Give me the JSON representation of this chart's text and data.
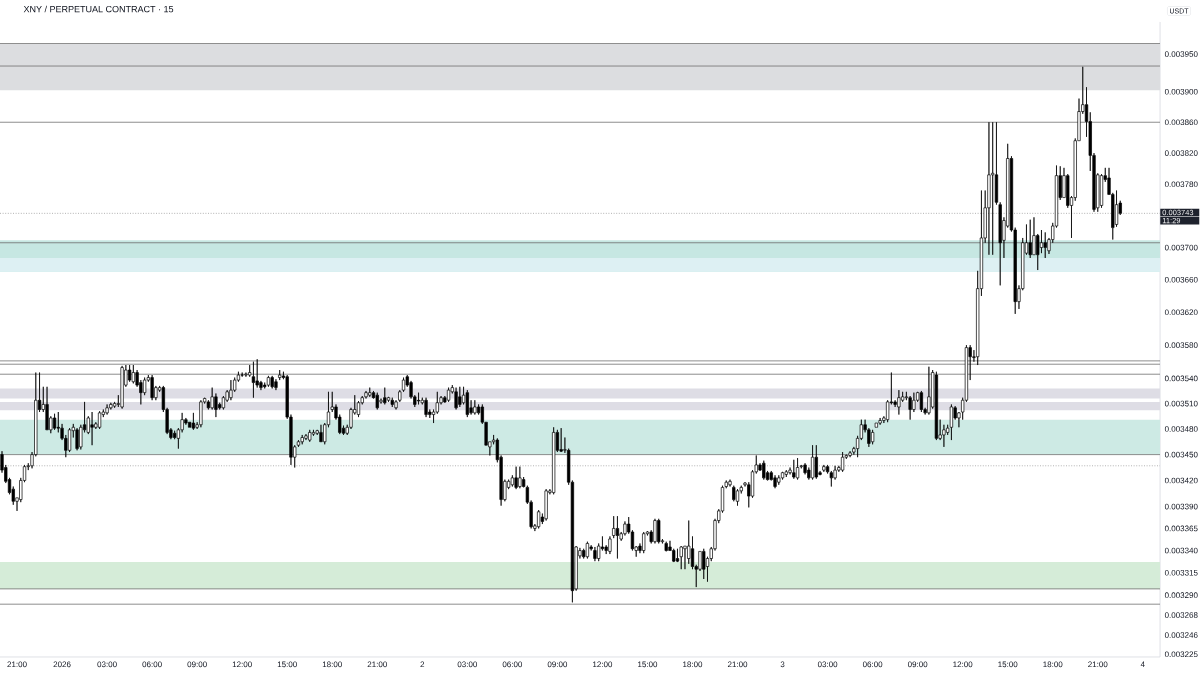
{
  "chart_data": {
    "type": "candlestick",
    "title": "XNY / PERPETUAL CONTRACT · 15",
    "ylabel": "USDT",
    "color": "#000000",
    "log": "y",
    "xlim": [
      "2025-12-31T19:52",
      "2026-01-04T01:09"
    ],
    "ylim": [
      0.003222,
      0.003993
    ],
    "xticks": [
      {
        "value": "2025-12-31T21:00",
        "label": "21:00"
      },
      {
        "value": "2026-01-01T00:00",
        "label": "2026"
      },
      {
        "value": "2026-01-01T03:00",
        "label": "03:00"
      },
      {
        "value": "2026-01-01T06:00",
        "label": "06:00"
      },
      {
        "value": "2026-01-01T09:00",
        "label": "09:00"
      },
      {
        "value": "2026-01-01T12:00",
        "label": "12:00"
      },
      {
        "value": "2026-01-01T15:00",
        "label": "15:00"
      },
      {
        "value": "2026-01-01T18:00",
        "label": "18:00"
      },
      {
        "value": "2026-01-01T21:00",
        "label": "21:00"
      },
      {
        "value": "2026-01-02T00:00",
        "label": "2"
      },
      {
        "value": "2026-01-02T03:00",
        "label": "03:00"
      },
      {
        "value": "2026-01-02T06:00",
        "label": "06:00"
      },
      {
        "value": "2026-01-02T09:00",
        "label": "09:00"
      },
      {
        "value": "2026-01-02T12:00",
        "label": "12:00"
      },
      {
        "value": "2026-01-02T15:00",
        "label": "15:00"
      },
      {
        "value": "2026-01-02T18:00",
        "label": "18:00"
      },
      {
        "value": "2026-01-02T21:00",
        "label": "21:00"
      },
      {
        "value": "2026-01-03T00:00",
        "label": "3"
      },
      {
        "value": "2026-01-03T03:00",
        "label": "03:00"
      },
      {
        "value": "2026-01-03T06:00",
        "label": "06:00"
      },
      {
        "value": "2026-01-03T09:00",
        "label": "09:00"
      },
      {
        "value": "2026-01-03T12:00",
        "label": "12:00"
      },
      {
        "value": "2026-01-03T15:00",
        "label": "15:00"
      },
      {
        "value": "2026-01-03T18:00",
        "label": "18:00"
      },
      {
        "value": "2026-01-03T21:00",
        "label": "21:00"
      },
      {
        "value": "2026-01-04T00:00",
        "label": "4"
      }
    ],
    "yticks": [
      {
        "value": 0.00395,
        "label": "0.003950"
      },
      {
        "value": 0.0039,
        "label": "0.003900"
      },
      {
        "value": 0.00386,
        "label": "0.003860"
      },
      {
        "value": 0.00382,
        "label": "0.003820"
      },
      {
        "value": 0.00378,
        "label": "0.003780"
      },
      {
        "value": 0.0037,
        "label": "0.003700"
      },
      {
        "value": 0.00366,
        "label": "0.003660"
      },
      {
        "value": 0.00362,
        "label": "0.003620"
      },
      {
        "value": 0.00358,
        "label": "0.003580"
      },
      {
        "value": 0.00354,
        "label": "0.003540"
      },
      {
        "value": 0.00351,
        "label": "0.003510"
      },
      {
        "value": 0.00348,
        "label": "0.003480"
      },
      {
        "value": 0.00345,
        "label": "0.003450"
      },
      {
        "value": 0.00342,
        "label": "0.003420"
      },
      {
        "value": 0.00339,
        "label": "0.003390"
      },
      0.003365,
      {
        "value": 0.00334,
        "label": "0.003340"
      },
      0.003315,
      {
        "value": 0.00329,
        "label": "0.003290"
      },
      0.003268,
      0.003246,
      0.003225
    ],
    "bands": [
      {
        "axis": "y",
        "from": 0.003934,
        "to": 0.003964,
        "color": "#dcdde0"
      },
      {
        "axis": "y",
        "from": 0.003902,
        "to": 0.003934,
        "color": "#dcdde0"
      },
      {
        "axis": "y",
        "from": 0.00367,
        "to": 0.003687,
        "color": "#ddf0f3"
      },
      {
        "axis": "y",
        "from": 0.00367,
        "to": 0.003709,
        "color": "#c6e7e2"
      },
      {
        "axis": "y",
        "from": 0.003516,
        "to": 0.003528,
        "color": "#dedde5"
      },
      {
        "axis": "y",
        "from": 0.003502,
        "to": 0.003512,
        "color": "#dedde5"
      },
      {
        "axis": "y",
        "from": 0.00345,
        "to": 0.003491,
        "color": "#cdeae4"
      },
      {
        "axis": "y",
        "from": 0.003297,
        "to": 0.003327,
        "color": "#d5ecd8"
      }
    ],
    "ref_lines": [
      {
        "axis": "y",
        "value": 0.003964,
        "color": "#707070"
      },
      {
        "axis": "y",
        "value": 0.003934,
        "color": "#707070"
      },
      {
        "axis": "y",
        "value": 0.00386,
        "color": "#707070"
      },
      {
        "axis": "y",
        "value": 0.003743,
        "label": "0.003743",
        "color": "#a0a0a0",
        "line_style": "dotted"
      },
      {
        "axis": "y",
        "value": 0.003706,
        "color": "#707070"
      },
      {
        "axis": "y",
        "value": 0.003561,
        "color": "#707070"
      },
      {
        "axis": "y",
        "value": 0.003557,
        "color": "#707070"
      },
      {
        "axis": "y",
        "value": 0.003545,
        "color": "#707070"
      },
      {
        "axis": "y",
        "value": 0.00345,
        "color": "#707070"
      },
      {
        "axis": "y",
        "value": 0.003437,
        "color": "#a0a0a0",
        "line_style": "dotted"
      },
      {
        "axis": "y",
        "value": 0.003297,
        "color": "#707070"
      },
      {
        "axis": "y",
        "value": 0.00328,
        "color": "#707070"
      }
    ],
    "annotations": [
      "11:29"
    ],
    "x": [
      "2025-12-31T20:00",
      "2025-12-31T20:15",
      "2025-12-31T20:30",
      "2025-12-31T20:45",
      "2025-12-31T21:00",
      "2025-12-31T21:15",
      "2025-12-31T21:30",
      "2025-12-31T21:45",
      "2025-12-31T22:00",
      "2025-12-31T22:15",
      "2025-12-31T22:30",
      "2025-12-31T22:45",
      "2025-12-31T23:00",
      "2025-12-31T23:15",
      "2025-12-31T23:30",
      "2025-12-31T23:45",
      "2026-01-01T00:00",
      "2026-01-01T00:15",
      "2026-01-01T00:30",
      "2026-01-01T00:45",
      "2026-01-01T01:00",
      "2026-01-01T01:15",
      "2026-01-01T01:30",
      "2026-01-01T01:45",
      "2026-01-01T02:00",
      "2026-01-01T02:15",
      "2026-01-01T02:30",
      "2026-01-01T02:45",
      "2026-01-01T03:00",
      "2026-01-01T03:15",
      "2026-01-01T03:30",
      "2026-01-01T03:45",
      "2026-01-01T04:00",
      "2026-01-01T04:15",
      "2026-01-01T04:30",
      "2026-01-01T04:45",
      "2026-01-01T05:00",
      "2026-01-01T05:15",
      "2026-01-01T05:30",
      "2026-01-01T05:45",
      "2026-01-01T06:00",
      "2026-01-01T06:15",
      "2026-01-01T06:30",
      "2026-01-01T06:45",
      "2026-01-01T07:00",
      "2026-01-01T07:15",
      "2026-01-01T07:30",
      "2026-01-01T07:45",
      "2026-01-01T08:00",
      "2026-01-01T08:15",
      "2026-01-01T08:30",
      "2026-01-01T08:45",
      "2026-01-01T09:00",
      "2026-01-01T09:15",
      "2026-01-01T09:30",
      "2026-01-01T09:45",
      "2026-01-01T10:00",
      "2026-01-01T10:15",
      "2026-01-01T10:30",
      "2026-01-01T10:45",
      "2026-01-01T11:00",
      "2026-01-01T11:15",
      "2026-01-01T11:30",
      "2026-01-01T11:45",
      "2026-01-01T12:00",
      "2026-01-01T12:15",
      "2026-01-01T12:30",
      "2026-01-01T12:45",
      "2026-01-01T13:00",
      "2026-01-01T13:15",
      "2026-01-01T13:30",
      "2026-01-01T13:45",
      "2026-01-01T14:00",
      "2026-01-01T14:15",
      "2026-01-01T14:30",
      "2026-01-01T14:45",
      "2026-01-01T15:00",
      "2026-01-01T15:15",
      "2026-01-01T15:30",
      "2026-01-01T15:45",
      "2026-01-01T16:00",
      "2026-01-01T16:15",
      "2026-01-01T16:30",
      "2026-01-01T16:45",
      "2026-01-01T17:00",
      "2026-01-01T17:15",
      "2026-01-01T17:30",
      "2026-01-01T17:45",
      "2026-01-01T18:00",
      "2026-01-01T18:15",
      "2026-01-01T18:30",
      "2026-01-01T18:45",
      "2026-01-01T19:00",
      "2026-01-01T19:15",
      "2026-01-01T19:30",
      "2026-01-01T19:45",
      "2026-01-01T20:00",
      "2026-01-01T20:15",
      "2026-01-01T20:30",
      "2026-01-01T20:45",
      "2026-01-01T21:00",
      "2026-01-01T21:15",
      "2026-01-01T21:30",
      "2026-01-01T21:45",
      "2026-01-01T22:00",
      "2026-01-01T22:15",
      "2026-01-01T22:30",
      "2026-01-01T22:45",
      "2026-01-01T23:00",
      "2026-01-01T23:15",
      "2026-01-01T23:30",
      "2026-01-01T23:45",
      "2026-01-02T00:00",
      "2026-01-02T00:15",
      "2026-01-02T00:30",
      "2026-01-02T00:45",
      "2026-01-02T01:00",
      "2026-01-02T01:15",
      "2026-01-02T01:30",
      "2026-01-02T01:45",
      "2026-01-02T02:00",
      "2026-01-02T02:15",
      "2026-01-02T02:30",
      "2026-01-02T02:45",
      "2026-01-02T03:00",
      "2026-01-02T03:15",
      "2026-01-02T03:30",
      "2026-01-02T03:45",
      "2026-01-02T04:00",
      "2026-01-02T04:15",
      "2026-01-02T04:30",
      "2026-01-02T04:45",
      "2026-01-02T05:00",
      "2026-01-02T05:15",
      "2026-01-02T05:30",
      "2026-01-02T05:45",
      "2026-01-02T06:00",
      "2026-01-02T06:15",
      "2026-01-02T06:30",
      "2026-01-02T06:45",
      "2026-01-02T07:00",
      "2026-01-02T07:15",
      "2026-01-02T07:30",
      "2026-01-02T07:45",
      "2026-01-02T08:00",
      "2026-01-02T08:15",
      "2026-01-02T08:30",
      "2026-01-02T08:45",
      "2026-01-02T09:00",
      "2026-01-02T09:15",
      "2026-01-02T09:30",
      "2026-01-02T09:45",
      "2026-01-02T10:00",
      "2026-01-02T10:15",
      "2026-01-02T10:30",
      "2026-01-02T10:45",
      "2026-01-02T11:00",
      "2026-01-02T11:15",
      "2026-01-02T11:30",
      "2026-01-02T11:45",
      "2026-01-02T12:00",
      "2026-01-02T12:15",
      "2026-01-02T12:30",
      "2026-01-02T12:45",
      "2026-01-02T13:00",
      "2026-01-02T13:15",
      "2026-01-02T13:30",
      "2026-01-02T13:45",
      "2026-01-02T14:00",
      "2026-01-02T14:15",
      "2026-01-02T14:30",
      "2026-01-02T14:45",
      "2026-01-02T15:00",
      "2026-01-02T15:15",
      "2026-01-02T15:30",
      "2026-01-02T15:45",
      "2026-01-02T16:00",
      "2026-01-02T16:15",
      "2026-01-02T16:30",
      "2026-01-02T16:45",
      "2026-01-02T17:00",
      "2026-01-02T17:15",
      "2026-01-02T17:30",
      "2026-01-02T17:45",
      "2026-01-02T18:00",
      "2026-01-02T18:15",
      "2026-01-02T18:30",
      "2026-01-02T18:45",
      "2026-01-02T19:00",
      "2026-01-02T19:15",
      "2026-01-02T19:30",
      "2026-01-02T19:45",
      "2026-01-02T20:00",
      "2026-01-02T20:15",
      "2026-01-02T20:30",
      "2026-01-02T20:45",
      "2026-01-02T21:00",
      "2026-01-02T21:15",
      "2026-01-02T21:30",
      "2026-01-02T21:45",
      "2026-01-02T22:00",
      "2026-01-02T22:15",
      "2026-01-02T22:30",
      "2026-01-02T22:45",
      "2026-01-02T23:00",
      "2026-01-02T23:15",
      "2026-01-02T23:30",
      "2026-01-02T23:45",
      "2026-01-03T00:00",
      "2026-01-03T00:15",
      "2026-01-03T00:30",
      "2026-01-03T00:45",
      "2026-01-03T01:00",
      "2026-01-03T01:15",
      "2026-01-03T01:30",
      "2026-01-03T01:45",
      "2026-01-03T02:00",
      "2026-01-03T02:15",
      "2026-01-03T02:30",
      "2026-01-03T02:45",
      "2026-01-03T03:00",
      "2026-01-03T03:15",
      "2026-01-03T03:30",
      "2026-01-03T03:45",
      "2026-01-03T04:00",
      "2026-01-03T04:15",
      "2026-01-03T04:30",
      "2026-01-03T04:45",
      "2026-01-03T05:00",
      "2026-01-03T05:15",
      "2026-01-03T05:30",
      "2026-01-03T05:45",
      "2026-01-03T06:00",
      "2026-01-03T06:15",
      "2026-01-03T06:30",
      "2026-01-03T06:45",
      "2026-01-03T07:00",
      "2026-01-03T07:15",
      "2026-01-03T07:30",
      "2026-01-03T07:45",
      "2026-01-03T08:00",
      "2026-01-03T08:15",
      "2026-01-03T08:30",
      "2026-01-03T08:45",
      "2026-01-03T09:00",
      "2026-01-03T09:15",
      "2026-01-03T09:30",
      "2026-01-03T09:45",
      "2026-01-03T10:00",
      "2026-01-03T10:15",
      "2026-01-03T10:30",
      "2026-01-03T10:45",
      "2026-01-03T11:00",
      "2026-01-03T11:15",
      "2026-01-03T11:30",
      "2026-01-03T11:45",
      "2026-01-03T12:00",
      "2026-01-03T12:15",
      "2026-01-03T12:30",
      "2026-01-03T12:45",
      "2026-01-03T13:00",
      "2026-01-03T13:15",
      "2026-01-03T13:30",
      "2026-01-03T13:45",
      "2026-01-03T14:00",
      "2026-01-03T14:15",
      "2026-01-03T14:30",
      "2026-01-03T14:45",
      "2026-01-03T15:00",
      "2026-01-03T15:15",
      "2026-01-03T15:30",
      "2026-01-03T15:45",
      "2026-01-03T16:00",
      "2026-01-03T16:15",
      "2026-01-03T16:30",
      "2026-01-03T16:45",
      "2026-01-03T17:00",
      "2026-01-03T17:15",
      "2026-01-03T17:30",
      "2026-01-03T17:45",
      "2026-01-03T18:00",
      "2026-01-03T18:15",
      "2026-01-03T18:30",
      "2026-01-03T18:45",
      "2026-01-03T19:00",
      "2026-01-03T19:15",
      "2026-01-03T19:30",
      "2026-01-03T19:45",
      "2026-01-03T20:00",
      "2026-01-03T20:15",
      "2026-01-03T20:30",
      "2026-01-03T20:45",
      "2026-01-03T21:00",
      "2026-01-03T21:15",
      "2026-01-03T21:30",
      "2026-01-03T21:45",
      "2026-01-03T22:00",
      "2026-01-03T22:15",
      "2026-01-03T22:30"
    ],
    "ohlc": [
      [
        0.00345,
        0.003454,
        0.003429,
        0.003432
      ],
      [
        0.003435,
        0.003438,
        0.003417,
        0.003419
      ],
      [
        0.003421,
        0.003423,
        0.003404,
        0.003406
      ],
      [
        0.00341,
        0.003413,
        0.003392,
        0.003396
      ],
      [
        0.003396,
        0.0034,
        0.003385,
        0.0034
      ],
      [
        0.003398,
        0.003423,
        0.003395,
        0.00342
      ],
      [
        0.00342,
        0.003438,
        0.003418,
        0.003436
      ],
      [
        0.003436,
        0.00344,
        0.003432,
        0.003437
      ],
      [
        0.003437,
        0.003453,
        0.003434,
        0.00345
      ],
      [
        0.00345,
        0.003547,
        0.003448,
        0.003514
      ],
      [
        0.003514,
        0.003547,
        0.0035,
        0.003503
      ],
      [
        0.003503,
        0.00353,
        0.0035,
        0.003509
      ],
      [
        0.003509,
        0.00353,
        0.003479,
        0.003479
      ],
      [
        0.003479,
        0.003495,
        0.003475,
        0.003493
      ],
      [
        0.003493,
        0.003498,
        0.003479,
        0.003481
      ],
      [
        0.003482,
        0.0035,
        0.003476,
        0.003481
      ],
      [
        0.003481,
        0.003486,
        0.003467,
        0.003469
      ],
      [
        0.003469,
        0.003473,
        0.003447,
        0.003455
      ],
      [
        0.003455,
        0.003481,
        0.003453,
        0.003479
      ],
      [
        0.003478,
        0.003486,
        0.00347,
        0.003482
      ],
      [
        0.003479,
        0.003481,
        0.003455,
        0.003457
      ],
      [
        0.003459,
        0.003485,
        0.003456,
        0.003482
      ],
      [
        0.003485,
        0.003512,
        0.003476,
        0.003479
      ],
      [
        0.003476,
        0.003495,
        0.003474,
        0.003493
      ],
      [
        0.003485,
        0.0035,
        0.003461,
        0.003482
      ],
      [
        0.003482,
        0.003488,
        0.00348,
        0.003486
      ],
      [
        0.003482,
        0.003501,
        0.00348,
        0.003499
      ],
      [
        0.003497,
        0.003503,
        0.003494,
        0.0035
      ],
      [
        0.003499,
        0.003509,
        0.003497,
        0.003505
      ],
      [
        0.003505,
        0.003511,
        0.003503,
        0.003509
      ],
      [
        0.003507,
        0.003512,
        0.003505,
        0.00351
      ],
      [
        0.003509,
        0.00352,
        0.003506,
        0.00351
      ],
      [
        0.003506,
        0.003555,
        0.003504,
        0.003553
      ],
      [
        0.003532,
        0.003556,
        0.00353,
        0.00355
      ],
      [
        0.00355,
        0.003556,
        0.003536,
        0.003538
      ],
      [
        0.003536,
        0.003556,
        0.003534,
        0.003547
      ],
      [
        0.003547,
        0.00355,
        0.00353,
        0.003532
      ],
      [
        0.003535,
        0.003538,
        0.003509,
        0.003523
      ],
      [
        0.003523,
        0.003541,
        0.00352,
        0.003538
      ],
      [
        0.003538,
        0.003544,
        0.003536,
        0.003541
      ],
      [
        0.003541,
        0.003544,
        0.003514,
        0.003517
      ],
      [
        0.003517,
        0.003531,
        0.003514,
        0.003529
      ],
      [
        0.003526,
        0.003531,
        0.003524,
        0.003529
      ],
      [
        0.003529,
        0.003531,
        0.0035,
        0.003503
      ],
      [
        0.003503,
        0.003505,
        0.003474,
        0.003476
      ],
      [
        0.003479,
        0.003481,
        0.003468,
        0.00347
      ],
      [
        0.003475,
        0.003478,
        0.003468,
        0.00347
      ],
      [
        0.003469,
        0.003481,
        0.003457,
        0.003479
      ],
      [
        0.003479,
        0.003499,
        0.003476,
        0.003491
      ],
      [
        0.003491,
        0.003493,
        0.003485,
        0.003487
      ],
      [
        0.003488,
        0.003488,
        0.003482,
        0.003482
      ],
      [
        0.003487,
        0.003499,
        0.003479,
        0.003481
      ],
      [
        0.003482,
        0.003488,
        0.00348,
        0.003485
      ],
      [
        0.003485,
        0.003514,
        0.003482,
        0.003512
      ],
      [
        0.003512,
        0.003517,
        0.00351,
        0.003516
      ],
      [
        0.003512,
        0.003514,
        0.003503,
        0.003505
      ],
      [
        0.003505,
        0.003529,
        0.003503,
        0.003518
      ],
      [
        0.003518,
        0.003522,
        0.003494,
        0.003503
      ],
      [
        0.003509,
        0.003511,
        0.003503,
        0.003505
      ],
      [
        0.003505,
        0.003519,
        0.003503,
        0.003517
      ],
      [
        0.003514,
        0.003526,
        0.003512,
        0.003524
      ],
      [
        0.003517,
        0.003538,
        0.003514,
        0.003526
      ],
      [
        0.003526,
        0.003541,
        0.003524,
        0.003538
      ],
      [
        0.003538,
        0.003548,
        0.003536,
        0.003544
      ],
      [
        0.003544,
        0.003547,
        0.003542,
        0.003544
      ],
      [
        0.003544,
        0.003547,
        0.003542,
        0.003545
      ],
      [
        0.003544,
        0.003556,
        0.003542,
        0.003547
      ],
      [
        0.003542,
        0.00356,
        0.003517,
        0.003535
      ],
      [
        0.003537,
        0.003563,
        0.003529,
        0.003532
      ],
      [
        0.003535,
        0.003537,
        0.003526,
        0.003529
      ],
      [
        0.003532,
        0.003535,
        0.003528,
        0.00353
      ],
      [
        0.003532,
        0.003543,
        0.00353,
        0.003541
      ],
      [
        0.003541,
        0.003543,
        0.003528,
        0.00353
      ],
      [
        0.003536,
        0.003539,
        0.003526,
        0.003529
      ],
      [
        0.003541,
        0.00355,
        0.003538,
        0.003544
      ],
      [
        0.003543,
        0.003548,
        0.003539,
        0.003541
      ],
      [
        0.003542,
        0.003544,
        0.003492,
        0.003494
      ],
      [
        0.003494,
        0.003497,
        0.003438,
        0.003447
      ],
      [
        0.003447,
        0.003461,
        0.003435,
        0.003459
      ],
      [
        0.003461,
        0.003467,
        0.003459,
        0.003465
      ],
      [
        0.003465,
        0.003473,
        0.003462,
        0.00347
      ],
      [
        0.003469,
        0.003474,
        0.003467,
        0.003472
      ],
      [
        0.003467,
        0.003479,
        0.003465,
        0.003476
      ],
      [
        0.003474,
        0.003479,
        0.003472,
        0.003476
      ],
      [
        0.003475,
        0.003479,
        0.003473,
        0.003478
      ],
      [
        0.003476,
        0.003485,
        0.003465,
        0.003465
      ],
      [
        0.003465,
        0.003487,
        0.003462,
        0.003485
      ],
      [
        0.003485,
        0.003524,
        0.003482,
        0.0035
      ],
      [
        0.003503,
        0.003524,
        0.0035,
        0.003506
      ],
      [
        0.003506,
        0.003509,
        0.003491,
        0.003493
      ],
      [
        0.003494,
        0.003497,
        0.003474,
        0.003476
      ],
      [
        0.003481,
        0.003484,
        0.003473,
        0.003475
      ],
      [
        0.003475,
        0.003485,
        0.003473,
        0.003482
      ],
      [
        0.003482,
        0.003505,
        0.00348,
        0.003503
      ],
      [
        0.003499,
        0.00352,
        0.003497,
        0.003503
      ],
      [
        0.003497,
        0.003513,
        0.003494,
        0.003511
      ],
      [
        0.003511,
        0.003519,
        0.003509,
        0.003517
      ],
      [
        0.003518,
        0.003525,
        0.003516,
        0.003523
      ],
      [
        0.00352,
        0.003529,
        0.003518,
        0.003523
      ],
      [
        0.003523,
        0.003525,
        0.003516,
        0.003517
      ],
      [
        0.00352,
        0.003523,
        0.003503,
        0.003505
      ],
      [
        0.003512,
        0.003516,
        0.00351,
        0.003514
      ],
      [
        0.003517,
        0.003529,
        0.003509,
        0.003511
      ],
      [
        0.003514,
        0.003518,
        0.003512,
        0.003517
      ],
      [
        0.003514,
        0.003517,
        0.003506,
        0.003509
      ],
      [
        0.003505,
        0.003514,
        0.003503,
        0.003512
      ],
      [
        0.003514,
        0.003526,
        0.003512,
        0.003524
      ],
      [
        0.003526,
        0.003541,
        0.003524,
        0.003538
      ],
      [
        0.003542,
        0.003544,
        0.00353,
        0.003532
      ],
      [
        0.003535,
        0.003537,
        0.003516,
        0.003518
      ],
      [
        0.003518,
        0.00352,
        0.003506,
        0.003509
      ],
      [
        0.003514,
        0.003523,
        0.003509,
        0.003513
      ],
      [
        0.003511,
        0.003517,
        0.003509,
        0.003514
      ],
      [
        0.003514,
        0.003517,
        0.003494,
        0.003497
      ],
      [
        0.0035,
        0.003503,
        0.003493,
        0.003497
      ],
      [
        0.003497,
        0.003503,
        0.003487,
        0.0035
      ],
      [
        0.0035,
        0.003524,
        0.003498,
        0.003511
      ],
      [
        0.003511,
        0.003519,
        0.003509,
        0.003517
      ],
      [
        0.003517,
        0.003519,
        0.003511,
        0.003512
      ],
      [
        0.003514,
        0.003529,
        0.003512,
        0.003526
      ],
      [
        0.003524,
        0.003532,
        0.003522,
        0.003529
      ],
      [
        0.003524,
        0.003529,
        0.003503,
        0.003505
      ],
      [
        0.003518,
        0.00353,
        0.003506,
        0.003509
      ],
      [
        0.003511,
        0.00353,
        0.003509,
        0.00352
      ],
      [
        0.003523,
        0.003526,
        0.003494,
        0.003497
      ],
      [
        0.003505,
        0.003514,
        0.003497,
        0.003499
      ],
      [
        0.003499,
        0.003514,
        0.003497,
        0.003506
      ],
      [
        0.003506,
        0.003509,
        0.003497,
        0.003499
      ],
      [
        0.003506,
        0.003509,
        0.003486,
        0.003488
      ],
      [
        0.003488,
        0.003488,
        0.003461,
        0.003461
      ],
      [
        0.003459,
        0.003465,
        0.003449,
        0.003465
      ],
      [
        0.003465,
        0.003473,
        0.003462,
        0.003467
      ],
      [
        0.003467,
        0.003469,
        0.003441,
        0.003444
      ],
      [
        0.003447,
        0.003449,
        0.003391,
        0.003398
      ],
      [
        0.003398,
        0.003421,
        0.003396,
        0.003419
      ],
      [
        0.003412,
        0.003421,
        0.00341,
        0.003419
      ],
      [
        0.003415,
        0.003426,
        0.003413,
        0.003423
      ],
      [
        0.003423,
        0.003436,
        0.00341,
        0.003412
      ],
      [
        0.003413,
        0.003436,
        0.003411,
        0.003423
      ],
      [
        0.003421,
        0.003424,
        0.003412,
        0.003413
      ],
      [
        0.003412,
        0.003414,
        0.003393,
        0.003395
      ],
      [
        0.003395,
        0.003397,
        0.003365,
        0.003367
      ],
      [
        0.003365,
        0.00337,
        0.003362,
        0.003368
      ],
      [
        0.003367,
        0.003386,
        0.003365,
        0.003384
      ],
      [
        0.003378,
        0.003382,
        0.00337,
        0.003373
      ],
      [
        0.003376,
        0.00341,
        0.003374,
        0.003408
      ],
      [
        0.003406,
        0.00341,
        0.003404,
        0.003408
      ],
      [
        0.003406,
        0.003482,
        0.003404,
        0.003476
      ],
      [
        0.003476,
        0.003479,
        0.003453,
        0.003455
      ],
      [
        0.003456,
        0.003481,
        0.003453,
        0.003454
      ],
      [
        0.003455,
        0.00347,
        0.003452,
        0.003456
      ],
      [
        0.003455,
        0.003457,
        0.003415,
        0.003418
      ],
      [
        0.003418,
        0.00342,
        0.003282,
        0.003295
      ],
      [
        0.003297,
        0.003345,
        0.003295,
        0.003344
      ],
      [
        0.003334,
        0.003343,
        0.003331,
        0.00334
      ],
      [
        0.00334,
        0.003342,
        0.003331,
        0.003333
      ],
      [
        0.003333,
        0.00335,
        0.003331,
        0.003348
      ],
      [
        0.003344,
        0.003346,
        0.00334,
        0.003342
      ],
      [
        0.00334,
        0.003344,
        0.003328,
        0.003331
      ],
      [
        0.003331,
        0.003348,
        0.003328,
        0.003345
      ],
      [
        0.003344,
        0.003356,
        0.00334,
        0.003342
      ],
      [
        0.003344,
        0.003346,
        0.003336,
        0.00334
      ],
      [
        0.003339,
        0.003356,
        0.003336,
        0.003353
      ],
      [
        0.003357,
        0.003379,
        0.003354,
        0.003365
      ],
      [
        0.003365,
        0.003379,
        0.003331,
        0.003357
      ],
      [
        0.003353,
        0.003361,
        0.003351,
        0.003359
      ],
      [
        0.003359,
        0.003373,
        0.003357,
        0.00337
      ],
      [
        0.00337,
        0.003378,
        0.003359,
        0.003361
      ],
      [
        0.003361,
        0.003363,
        0.00334,
        0.003342
      ],
      [
        0.00334,
        0.003345,
        0.003333,
        0.003344
      ],
      [
        0.003345,
        0.003348,
        0.003337,
        0.00334
      ],
      [
        0.00334,
        0.003361,
        0.003337,
        0.003359
      ],
      [
        0.003359,
        0.003362,
        0.003357,
        0.003361
      ],
      [
        0.003361,
        0.003363,
        0.003348,
        0.00335
      ],
      [
        0.00335,
        0.003376,
        0.003348,
        0.003374
      ],
      [
        0.003374,
        0.003376,
        0.003348,
        0.00335
      ],
      [
        0.00335,
        0.003353,
        0.003348,
        0.003351
      ],
      [
        0.003348,
        0.00335,
        0.003339,
        0.00334
      ],
      [
        0.003344,
        0.003351,
        0.00334,
        0.00334
      ],
      [
        0.00334,
        0.003342,
        0.003327,
        0.003328
      ],
      [
        0.003331,
        0.003342,
        0.003327,
        0.003328
      ],
      [
        0.003333,
        0.003345,
        0.003319,
        0.003344
      ],
      [
        0.003342,
        0.003345,
        0.003319,
        0.003345
      ],
      [
        0.003331,
        0.003374,
        0.003325,
        0.003345
      ],
      [
        0.003342,
        0.003356,
        0.003319,
        0.003322
      ],
      [
        0.003322,
        0.003324,
        0.003299,
        0.003319
      ],
      [
        0.003319,
        0.003339,
        0.003317,
        0.003339
      ],
      [
        0.003339,
        0.003342,
        0.003308,
        0.003319
      ],
      [
        0.003322,
        0.003333,
        0.003305,
        0.003331
      ],
      [
        0.003331,
        0.003344,
        0.003328,
        0.003342
      ],
      [
        0.003342,
        0.003376,
        0.00334,
        0.003374
      ],
      [
        0.003374,
        0.003387,
        0.003371,
        0.003385
      ],
      [
        0.003385,
        0.003414,
        0.003383,
        0.003412
      ],
      [
        0.003413,
        0.00342,
        0.003411,
        0.003418
      ],
      [
        0.003415,
        0.003421,
        0.003413,
        0.003419
      ],
      [
        0.003412,
        0.003414,
        0.003396,
        0.003398
      ],
      [
        0.003396,
        0.00341,
        0.003391,
        0.003408
      ],
      [
        0.003408,
        0.003414,
        0.003405,
        0.003412
      ],
      [
        0.003415,
        0.003418,
        0.003413,
        0.003417
      ],
      [
        0.003415,
        0.003418,
        0.003389,
        0.003402
      ],
      [
        0.003402,
        0.003432,
        0.0034,
        0.00343
      ],
      [
        0.00343,
        0.003449,
        0.003428,
        0.003438
      ],
      [
        0.003438,
        0.00344,
        0.003431,
        0.003432
      ],
      [
        0.00344,
        0.003443,
        0.003421,
        0.003423
      ],
      [
        0.003429,
        0.003431,
        0.00342,
        0.003421
      ],
      [
        0.003429,
        0.003431,
        0.00342,
        0.003421
      ],
      [
        0.003423,
        0.003426,
        0.003411,
        0.003413
      ],
      [
        0.003418,
        0.003426,
        0.003415,
        0.003423
      ],
      [
        0.003423,
        0.00343,
        0.003421,
        0.003429
      ],
      [
        0.003427,
        0.003432,
        0.003424,
        0.00343
      ],
      [
        0.003429,
        0.003435,
        0.003427,
        0.003432
      ],
      [
        0.003429,
        0.003444,
        0.003422,
        0.003424
      ],
      [
        0.003423,
        0.003446,
        0.003421,
        0.003435
      ],
      [
        0.003436,
        0.003438,
        0.003434,
        0.003437
      ],
      [
        0.003438,
        0.00344,
        0.003427,
        0.003429
      ],
      [
        0.003432,
        0.003435,
        0.003421,
        0.003423
      ],
      [
        0.003423,
        0.003461,
        0.003421,
        0.003447
      ],
      [
        0.003447,
        0.003461,
        0.003422,
        0.003424
      ],
      [
        0.003429,
        0.003431,
        0.003426,
        0.003427
      ],
      [
        0.003432,
        0.003438,
        0.00343,
        0.003436
      ],
      [
        0.003436,
        0.003438,
        0.003428,
        0.00343
      ],
      [
        0.003429,
        0.003431,
        0.003413,
        0.003423
      ],
      [
        0.003423,
        0.003437,
        0.003421,
        0.003432
      ],
      [
        0.003432,
        0.003437,
        0.00343,
        0.003435
      ],
      [
        0.003432,
        0.003453,
        0.00343,
        0.003447
      ],
      [
        0.003447,
        0.00345,
        0.003445,
        0.003449
      ],
      [
        0.003449,
        0.003454,
        0.003447,
        0.003452
      ],
      [
        0.003453,
        0.003459,
        0.00345,
        0.003457
      ],
      [
        0.003457,
        0.003472,
        0.003447,
        0.003469
      ],
      [
        0.003469,
        0.003491,
        0.003467,
        0.003485
      ],
      [
        0.003485,
        0.003491,
        0.003476,
        0.003479
      ],
      [
        0.003479,
        0.003481,
        0.003459,
        0.003463
      ],
      [
        0.003465,
        0.003479,
        0.003462,
        0.003476
      ],
      [
        0.003482,
        0.003487,
        0.003482,
        0.003487
      ],
      [
        0.003487,
        0.003493,
        0.003485,
        0.00349
      ],
      [
        0.00349,
        0.003495,
        0.003487,
        0.003493
      ],
      [
        0.003491,
        0.003514,
        0.003488,
        0.003512
      ],
      [
        0.003512,
        0.003547,
        0.003509,
        0.003511
      ],
      [
        0.003512,
        0.003514,
        0.003506,
        0.003509
      ],
      [
        0.003506,
        0.003526,
        0.003497,
        0.003517
      ],
      [
        0.003514,
        0.003524,
        0.003512,
        0.003518
      ],
      [
        0.003517,
        0.003524,
        0.003514,
        0.003518
      ],
      [
        0.003517,
        0.003519,
        0.003491,
        0.003503
      ],
      [
        0.003503,
        0.003523,
        0.0035,
        0.003514
      ],
      [
        0.003514,
        0.003524,
        0.003512,
        0.003523
      ],
      [
        0.003523,
        0.003525,
        0.0035,
        0.003503
      ],
      [
        0.003503,
        0.003505,
        0.003497,
        0.003499
      ],
      [
        0.003499,
        0.003554,
        0.003497,
        0.003518
      ],
      [
        0.003506,
        0.00355,
        0.003504,
        0.003547
      ],
      [
        0.003544,
        0.003548,
        0.003467,
        0.003469
      ],
      [
        0.003469,
        0.003491,
        0.003467,
        0.003473
      ],
      [
        0.003473,
        0.003485,
        0.003459,
        0.003479
      ],
      [
        0.003476,
        0.003485,
        0.003473,
        0.003481
      ],
      [
        0.003482,
        0.003509,
        0.003467,
        0.003506
      ],
      [
        0.003505,
        0.003507,
        0.003491,
        0.003493
      ],
      [
        0.003493,
        0.0035,
        0.003482,
        0.003499
      ],
      [
        0.0035,
        0.003517,
        0.003491,
        0.003514
      ],
      [
        0.003514,
        0.00358,
        0.003512,
        0.003577
      ],
      [
        0.003577,
        0.00358,
        0.003538,
        0.003566
      ],
      [
        0.003566,
        0.003574,
        0.00356,
        0.003565
      ],
      [
        0.003566,
        0.003671,
        0.003556,
        0.003649
      ],
      [
        0.003649,
        0.003772,
        0.00364,
        0.003712
      ],
      [
        0.003712,
        0.003772,
        0.003706,
        0.00375
      ],
      [
        0.00375,
        0.00386,
        0.003691,
        0.003792
      ],
      [
        0.003792,
        0.00386,
        0.003691,
        0.003794
      ],
      [
        0.003792,
        0.00386,
        0.003754,
        0.003757
      ],
      [
        0.003754,
        0.003757,
        0.003653,
        0.003706
      ],
      [
        0.003709,
        0.003738,
        0.003687,
        0.003734
      ],
      [
        0.003727,
        0.003832,
        0.003725,
        0.003813
      ],
      [
        0.003813,
        0.003816,
        0.00372,
        0.003722
      ],
      [
        0.003722,
        0.003725,
        0.003618,
        0.003633
      ],
      [
        0.003633,
        0.003653,
        0.003624,
        0.003649
      ],
      [
        0.003649,
        0.003712,
        0.003647,
        0.003706
      ],
      [
        0.003693,
        0.003729,
        0.003691,
        0.003706
      ],
      [
        0.003706,
        0.003735,
        0.003687,
        0.003691
      ],
      [
        0.003691,
        0.003738,
        0.003691,
        0.003715
      ],
      [
        0.003715,
        0.003717,
        0.003672,
        0.003691
      ],
      [
        0.0037,
        0.003722,
        0.003693,
        0.003706
      ],
      [
        0.003706,
        0.003719,
        0.003687,
        0.0037
      ],
      [
        0.003696,
        0.003712,
        0.003692,
        0.00371
      ],
      [
        0.00371,
        0.003731,
        0.003706,
        0.003727
      ],
      [
        0.003727,
        0.003804,
        0.003725,
        0.003791
      ],
      [
        0.003791,
        0.003803,
        0.00376,
        0.003763
      ],
      [
        0.003763,
        0.003801,
        0.003763,
        0.003791
      ],
      [
        0.003791,
        0.003793,
        0.00375,
        0.003753
      ],
      [
        0.003753,
        0.003765,
        0.003712,
        0.003763
      ],
      [
        0.003763,
        0.003839,
        0.003759,
        0.003836
      ],
      [
        0.003836,
        0.003891,
        0.003836,
        0.003874
      ],
      [
        0.003874,
        0.003933,
        0.003871,
        0.003883
      ],
      [
        0.003883,
        0.003906,
        0.003841,
        0.003861
      ],
      [
        0.003861,
        0.003873,
        0.003797,
        0.003817
      ],
      [
        0.003817,
        0.00382,
        0.003745,
        0.003748
      ],
      [
        0.00375,
        0.003794,
        0.003745,
        0.003792
      ],
      [
        0.003753,
        0.003793,
        0.00375,
        0.003791
      ],
      [
        0.003791,
        0.003801,
        0.003783,
        0.003786
      ],
      [
        0.003788,
        0.003801,
        0.003767,
        0.003767
      ],
      [
        0.003767,
        0.003769,
        0.00371,
        0.003725
      ],
      [
        0.003729,
        0.003772,
        0.003726,
        0.003754
      ],
      [
        0.003756,
        0.003759,
        0.003741,
        0.003743
      ]
    ]
  }
}
